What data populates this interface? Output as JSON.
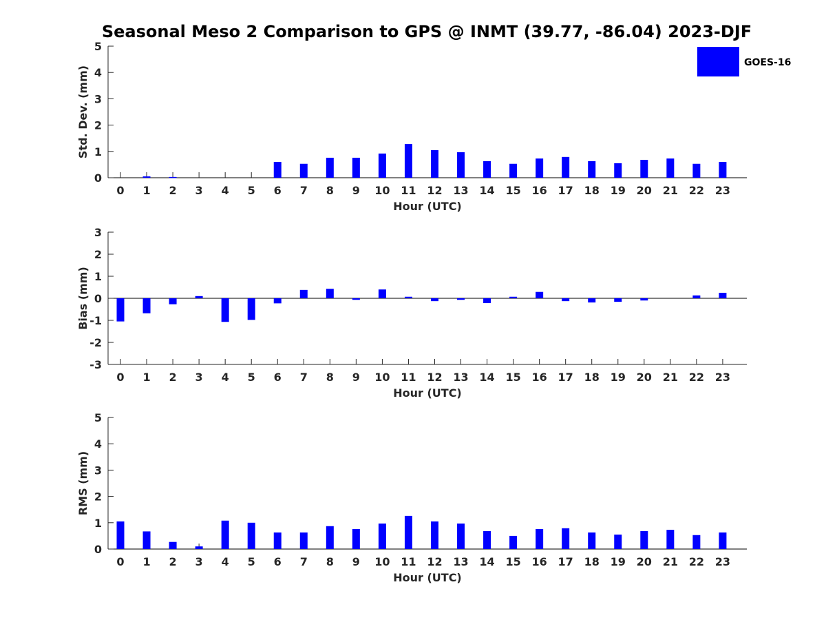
{
  "title": "Seasonal Meso 2 Comparison to GPS @ INMT (39.77, -86.04) 2023-DJF",
  "legend": {
    "label": "GOES-16",
    "color": "#0000ff",
    "placement": "top-right"
  },
  "chart_data": [
    {
      "type": "bar",
      "ylabel": "Std. Dev. (mm)",
      "xlabel": "Hour (UTC)",
      "ylim": [
        0,
        5
      ],
      "yticks": [
        0,
        1,
        2,
        3,
        4,
        5
      ],
      "categories": [
        "0",
        "1",
        "2",
        "3",
        "4",
        "5",
        "6",
        "7",
        "8",
        "9",
        "10",
        "11",
        "12",
        "13",
        "14",
        "15",
        "16",
        "17",
        "18",
        "19",
        "20",
        "21",
        "22",
        "23"
      ],
      "series": [
        {
          "name": "GOES-16",
          "color": "#0000ff",
          "values": [
            0,
            0.05,
            0.03,
            0,
            0,
            0,
            0.6,
            0.53,
            0.76,
            0.76,
            0.92,
            1.28,
            1.05,
            0.97,
            0.63,
            0.53,
            0.73,
            0.79,
            0.63,
            0.55,
            0.68,
            0.73,
            0.53,
            0.6
          ]
        }
      ]
    },
    {
      "type": "bar",
      "ylabel": "Bias (mm)",
      "xlabel": "Hour (UTC)",
      "ylim": [
        -3,
        3
      ],
      "yticks": [
        -3,
        -2,
        -1,
        0,
        1,
        2,
        3
      ],
      "categories": [
        "0",
        "1",
        "2",
        "3",
        "4",
        "5",
        "6",
        "7",
        "8",
        "9",
        "10",
        "11",
        "12",
        "13",
        "14",
        "15",
        "16",
        "17",
        "18",
        "19",
        "20",
        "21",
        "22",
        "23"
      ],
      "series": [
        {
          "name": "GOES-16",
          "color": "#0000ff",
          "values": [
            -1.05,
            -0.68,
            -0.27,
            0.1,
            -1.07,
            -0.98,
            -0.23,
            0.38,
            0.43,
            -0.07,
            0.4,
            0.07,
            -0.13,
            -0.07,
            -0.22,
            0.07,
            0.29,
            -0.13,
            -0.19,
            -0.16,
            -0.1,
            0,
            0.13,
            0.25
          ]
        }
      ]
    },
    {
      "type": "bar",
      "ylabel": "RMS (mm)",
      "xlabel": "Hour (UTC)",
      "ylim": [
        0,
        5
      ],
      "yticks": [
        0,
        1,
        2,
        3,
        4,
        5
      ],
      "categories": [
        "0",
        "1",
        "2",
        "3",
        "4",
        "5",
        "6",
        "7",
        "8",
        "9",
        "10",
        "11",
        "12",
        "13",
        "14",
        "15",
        "16",
        "17",
        "18",
        "19",
        "20",
        "21",
        "22",
        "23"
      ],
      "series": [
        {
          "name": "GOES-16",
          "color": "#0000ff",
          "values": [
            1.05,
            0.67,
            0.27,
            0.1,
            1.08,
            1.0,
            0.63,
            0.63,
            0.87,
            0.76,
            0.97,
            1.26,
            1.05,
            0.97,
            0.68,
            0.5,
            0.76,
            0.79,
            0.63,
            0.55,
            0.68,
            0.73,
            0.53,
            0.63
          ]
        }
      ]
    }
  ]
}
